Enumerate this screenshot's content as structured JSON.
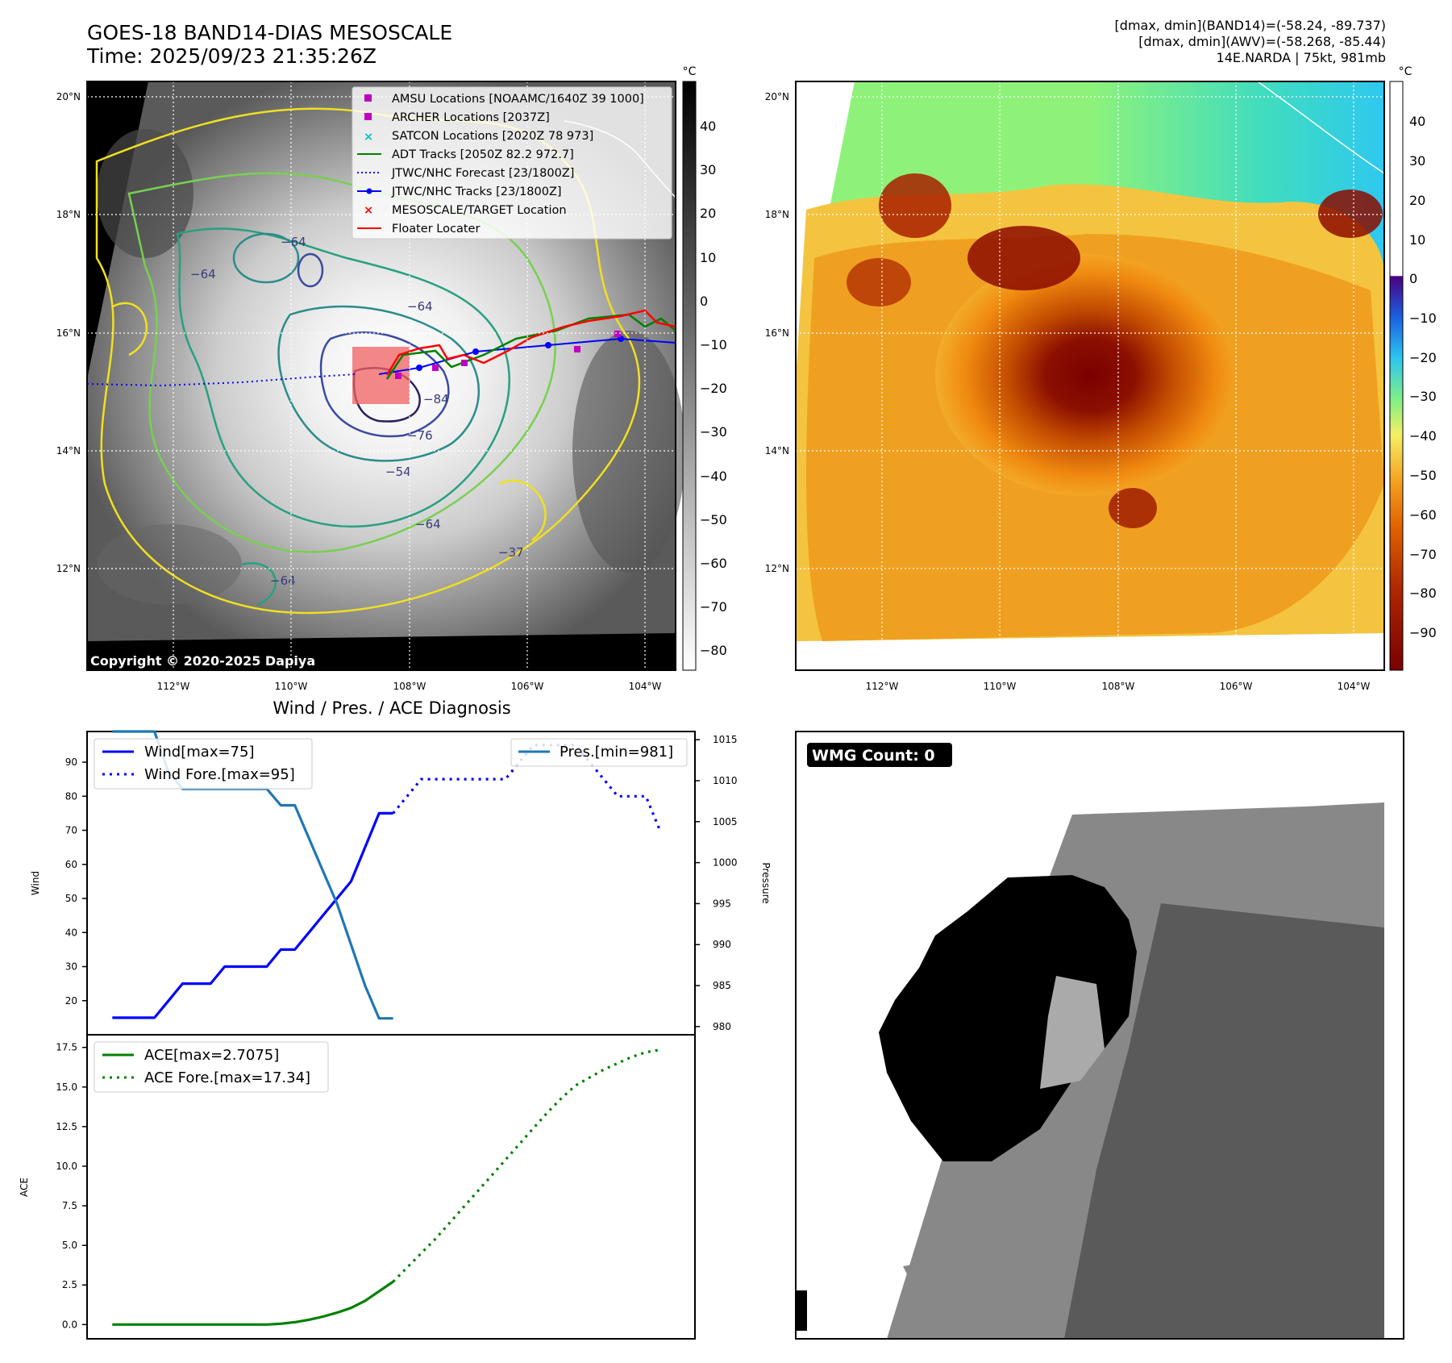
{
  "header": {
    "title_line1": "GOES-18 BAND14-DIAS MESOSCALE",
    "title_line2": "Time: 2025/09/23 21:35:26Z",
    "info_line1": "[dmax, dmin](BAND14)=(-58.24, -89.737)",
    "info_line2": "[dmax, dmin](AWV)=(-58.268, -85.44)",
    "info_line3": "14E.NARDA | 75kt, 981mb"
  },
  "map_left": {
    "copyright": "Copyright © 2020-2025 Dapiya",
    "unit": "°C",
    "lat_labels": [
      "20°N",
      "18°N",
      "16°N",
      "14°N",
      "12°N"
    ],
    "lon_labels": [
      "112°W",
      "110°W",
      "108°W",
      "106°W",
      "104°W"
    ],
    "colorbar_ticks": [
      "40",
      "30",
      "20",
      "10",
      "0",
      "−10",
      "−20",
      "−30",
      "−40",
      "−50",
      "−60",
      "−70",
      "−80"
    ],
    "contour_labels": [
      "−64",
      "−64",
      "−64",
      "−76",
      "−84",
      "−64",
      "−54",
      "−37",
      "−64"
    ],
    "legend": [
      {
        "label": "AMSU Locations [NOAAMC/1640Z 39 1000]",
        "marker": "square",
        "color": "#c000c0"
      },
      {
        "label": "ARCHER Locations [2037Z]",
        "marker": "square",
        "color": "#c000c0"
      },
      {
        "label": "SATCON Locations [2020Z 78 973]",
        "marker": "x",
        "color": "#00c0c0"
      },
      {
        "label": "ADT Tracks [2050Z 82.2 972.7]",
        "marker": "line",
        "color": "#008000"
      },
      {
        "label": "JTWC/NHC Forecast [23/1800Z]",
        "marker": "dotted",
        "color": "#0000ff"
      },
      {
        "label": "JTWC/NHC Tracks [23/1800Z]",
        "marker": "line-dot",
        "color": "#0000ff"
      },
      {
        "label": "MESOSCALE/TARGET Location",
        "marker": "x",
        "color": "#ff0000"
      },
      {
        "label": "Floater Locater",
        "marker": "line",
        "color": "#ff0000"
      }
    ]
  },
  "map_right": {
    "unit": "°C",
    "lat_labels": [
      "20°N",
      "18°N",
      "16°N",
      "14°N",
      "12°N"
    ],
    "lon_labels": [
      "112°W",
      "110°W",
      "108°W",
      "106°W",
      "104°W"
    ],
    "colorbar_ticks": [
      "40",
      "30",
      "20",
      "10",
      "0",
      "−10",
      "−20",
      "−30",
      "−40",
      "−50",
      "−60",
      "−70",
      "−80",
      "−90"
    ]
  },
  "wmg": {
    "badge": "WMG Count: 0"
  },
  "chart_data": [
    {
      "type": "line",
      "title": "Wind / Pres. / ACE Diagnosis",
      "ylabel": "Wind",
      "y2label": "Pressure",
      "ylim": [
        10,
        99
      ],
      "y2lim": [
        979,
        1016
      ],
      "yticks": [
        20,
        30,
        40,
        50,
        60,
        70,
        80,
        90
      ],
      "y2ticks": [
        980,
        985,
        990,
        995,
        1000,
        1005,
        1010,
        1015
      ],
      "series": [
        {
          "name": "Wind[max=75]",
          "axis": "left",
          "color": "#0000ff",
          "style": "solid",
          "x": [
            0,
            1,
            2,
            3,
            4,
            5,
            6,
            7,
            8,
            9,
            10,
            11,
            12,
            13,
            14,
            15,
            16,
            17,
            18,
            19,
            20
          ],
          "values": [
            15,
            15,
            15,
            15,
            20,
            25,
            25,
            25,
            30,
            30,
            30,
            30,
            35,
            35,
            40,
            45,
            50,
            55,
            65,
            75,
            75
          ]
        },
        {
          "name": "Wind Fore.[max=95]",
          "axis": "left",
          "color": "#0000ff",
          "style": "dotted",
          "x": [
            20,
            21,
            22,
            23,
            24,
            25,
            26,
            27,
            28,
            29,
            30,
            31,
            32,
            33,
            34,
            35,
            36,
            37,
            38,
            39
          ],
          "values": [
            75,
            80,
            85,
            85,
            85,
            85,
            85,
            85,
            85,
            90,
            95,
            95,
            95,
            95,
            90,
            85,
            80,
            80,
            80,
            70
          ]
        },
        {
          "name": "Pres.[min=981]",
          "axis": "right",
          "color": "#1f77b4",
          "style": "solid",
          "x": [
            0,
            1,
            2,
            3,
            4,
            5,
            6,
            7,
            8,
            9,
            10,
            11,
            12,
            13,
            14,
            15,
            16,
            17,
            18,
            19,
            20
          ],
          "values": [
            1016,
            1016,
            1016,
            1016,
            1011,
            1009,
            1009,
            1009,
            1009,
            1009,
            1009,
            1009,
            1007,
            1007,
            1003,
            999,
            995,
            990,
            985,
            981,
            981
          ]
        }
      ]
    },
    {
      "type": "line",
      "ylabel": "ACE",
      "ylim": [
        -0.9,
        18.3
      ],
      "yticks": [
        0.0,
        2.5,
        5.0,
        7.5,
        10.0,
        12.5,
        15.0,
        17.5
      ],
      "ytick_labels": [
        "0.0",
        "2.5",
        "5.0",
        "7.5",
        "10.0",
        "12.5",
        "15.0",
        "17.5"
      ],
      "series": [
        {
          "name": "ACE[max=2.7075]",
          "color": "#008000",
          "style": "solid",
          "x": [
            0,
            1,
            2,
            3,
            4,
            5,
            6,
            7,
            8,
            9,
            10,
            11,
            12,
            13,
            14,
            15,
            16,
            17,
            18,
            19,
            20
          ],
          "values": [
            0,
            0,
            0,
            0,
            0,
            0,
            0,
            0,
            0,
            0,
            0,
            0,
            0.05,
            0.15,
            0.3,
            0.5,
            0.75,
            1.05,
            1.5,
            2.1,
            2.7075
          ]
        },
        {
          "name": "ACE Fore.[max=17.34]",
          "color": "#008000",
          "style": "dotted",
          "x": [
            20,
            21,
            22,
            23,
            24,
            25,
            26,
            27,
            28,
            29,
            30,
            31,
            32,
            33,
            34,
            35,
            36,
            37,
            38,
            39
          ],
          "values": [
            2.7075,
            3.6,
            4.5,
            5.4,
            6.4,
            7.4,
            8.4,
            9.4,
            10.4,
            11.4,
            12.4,
            13.4,
            14.3,
            15.1,
            15.6,
            16.1,
            16.5,
            16.9,
            17.2,
            17.34
          ]
        }
      ]
    }
  ]
}
